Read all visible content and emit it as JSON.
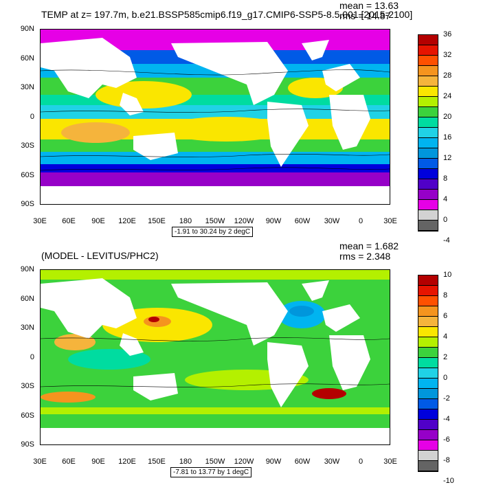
{
  "panel1": {
    "title": "TEMP at z= 197.7m, b.e21.BSSP585cmip6.f19_g17.CMIP6-SSP5-8.5.001 [2015-2100]",
    "mean": "mean = 13.63",
    "rms": "rms = 14.87",
    "range_text": "-1.91 to 30.24 by 2 degC",
    "colorbar_labels": [
      "36",
      "32",
      "28",
      "24",
      "20",
      "16",
      "12",
      "8",
      "4",
      "0",
      "-4"
    ],
    "colors": [
      "#b40000",
      "#e61400",
      "#ff5000",
      "#f5941e",
      "#f5b43c",
      "#fae600",
      "#b4f000",
      "#3cd23c",
      "#00dca0",
      "#20d2e6",
      "#00b4f0",
      "#0096dc",
      "#005ae6",
      "#0000dc",
      "#5000c8",
      "#9600c8",
      "#e600e6",
      "#d2d2d2",
      "#646464"
    ]
  },
  "panel2": {
    "title": "(MODEL - LEVITUS/PHC2)",
    "mean": "mean = 1.682",
    "rms": "rms = 2.348",
    "range_text": "-7.81 to 13.77 by 1 degC",
    "colorbar_labels": [
      "10",
      "8",
      "6",
      "4",
      "2",
      "0",
      "-2",
      "-4",
      "-6",
      "-8",
      "-10"
    ],
    "colors": [
      "#b40000",
      "#e61400",
      "#ff5000",
      "#f5941e",
      "#f5b43c",
      "#fae600",
      "#b4f000",
      "#3cd23c",
      "#00dca0",
      "#20d2e6",
      "#00b4f0",
      "#0096dc",
      "#005ae6",
      "#0000dc",
      "#5000c8",
      "#9600c8",
      "#e600e6",
      "#d2d2d2",
      "#646464"
    ]
  },
  "axes": {
    "lat_labels": [
      "90N",
      "60N",
      "30N",
      "0",
      "30S",
      "60S",
      "90S"
    ],
    "lon_labels": [
      "30E",
      "60E",
      "90E",
      "120E",
      "150E",
      "180",
      "150W",
      "120W",
      "90W",
      "60W",
      "30W",
      "0",
      "30E"
    ]
  }
}
